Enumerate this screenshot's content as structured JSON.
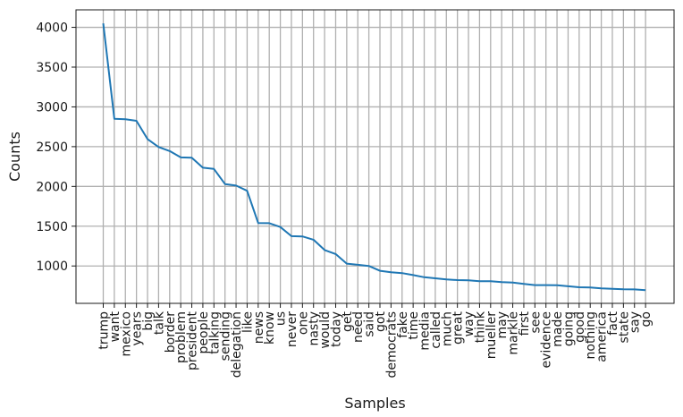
{
  "chart_data": {
    "type": "line",
    "xlabel": "Samples",
    "ylabel": "Counts",
    "grid": true,
    "line_color": "#1f77b4",
    "grid_color": "#b0b0b0",
    "yticks": [
      1000,
      1500,
      2000,
      2500,
      3000,
      3500,
      4000
    ],
    "ylim": [
      530,
      4220
    ],
    "categories": [
      "trump",
      "want",
      "mexico",
      "years",
      "big",
      "talk",
      "border",
      "problem",
      "president",
      "people",
      "talking",
      "sending",
      "delegation",
      "like",
      "news",
      "know",
      "us",
      "never",
      "one",
      "nasty",
      "would",
      "today",
      "get",
      "need",
      "said",
      "got",
      "democrats",
      "fake",
      "time",
      "media",
      "called",
      "much",
      "great",
      "way",
      "think",
      "mueller",
      "may",
      "markle",
      "first",
      "see",
      "evidence",
      "made",
      "going",
      "good",
      "nothing",
      "america",
      "fact",
      "state",
      "say",
      "go"
    ],
    "values": [
      4050,
      2850,
      2845,
      2825,
      2595,
      2495,
      2445,
      2365,
      2360,
      2235,
      2220,
      2030,
      2010,
      1945,
      1540,
      1538,
      1490,
      1375,
      1372,
      1330,
      1200,
      1150,
      1030,
      1015,
      1000,
      940,
      920,
      910,
      885,
      858,
      845,
      832,
      822,
      820,
      808,
      808,
      798,
      792,
      775,
      760,
      760,
      758,
      745,
      733,
      730,
      718,
      713,
      708,
      706,
      695
    ]
  }
}
